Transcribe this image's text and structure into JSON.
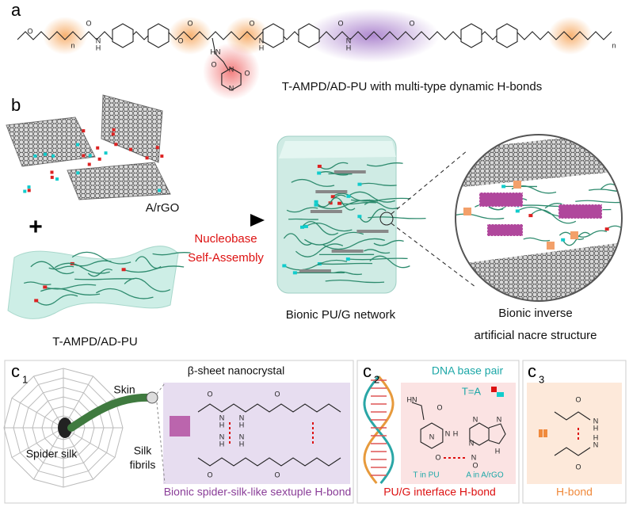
{
  "panel_a": {
    "label": "a",
    "caption": "T-AMPD/AD-PU with multi-type dynamic H-bonds",
    "atoms": [
      "O",
      "n",
      "O",
      "N",
      "H",
      "O",
      "O",
      "O",
      "N",
      "H",
      "HN",
      "O",
      "N",
      "N",
      "O",
      "O",
      "N",
      "H",
      "O",
      "n"
    ]
  },
  "panel_b": {
    "label": "b",
    "graphene_label": "A/rGO",
    "plus": "+",
    "arrow_label": [
      "Nucleobase",
      "Self-Assembly"
    ],
    "polymer_label": "T-AMPD/AD-PU",
    "network_label": "Bionic PU/G network",
    "nacre_label": [
      "Bionic inverse",
      "artificial nacre structure"
    ]
  },
  "panel_c1": {
    "label": "c",
    "subscript": "1",
    "spider_label": "Spider silk",
    "skin_label": "Skin",
    "fibrils_label": [
      "Silk",
      "fibrils"
    ],
    "crystal_label": "β-sheet nanocrystal",
    "caption": "Bionic spider-silk-like sextuple H-bond",
    "atoms": [
      "O",
      "N",
      "H",
      "N",
      "H",
      "O",
      "O",
      "H",
      "N",
      "H",
      "N",
      "O"
    ]
  },
  "panel_c2": {
    "label": "c",
    "subscript": "2",
    "dna_label": "DNA base pair",
    "pair_label": "T=A",
    "t_label": "T in PU",
    "a_label": "A in A/rGO",
    "caption": "PU/G interface H-bond",
    "atoms": [
      "HN",
      "O",
      "N",
      "O",
      "N",
      "H",
      "N",
      "N",
      "N",
      "H",
      "N",
      "O"
    ]
  },
  "panel_c3": {
    "label": "c",
    "subscript": "3",
    "caption": "H-bond",
    "atoms": [
      "O",
      "N",
      "H",
      "O",
      "N",
      "H"
    ]
  }
}
